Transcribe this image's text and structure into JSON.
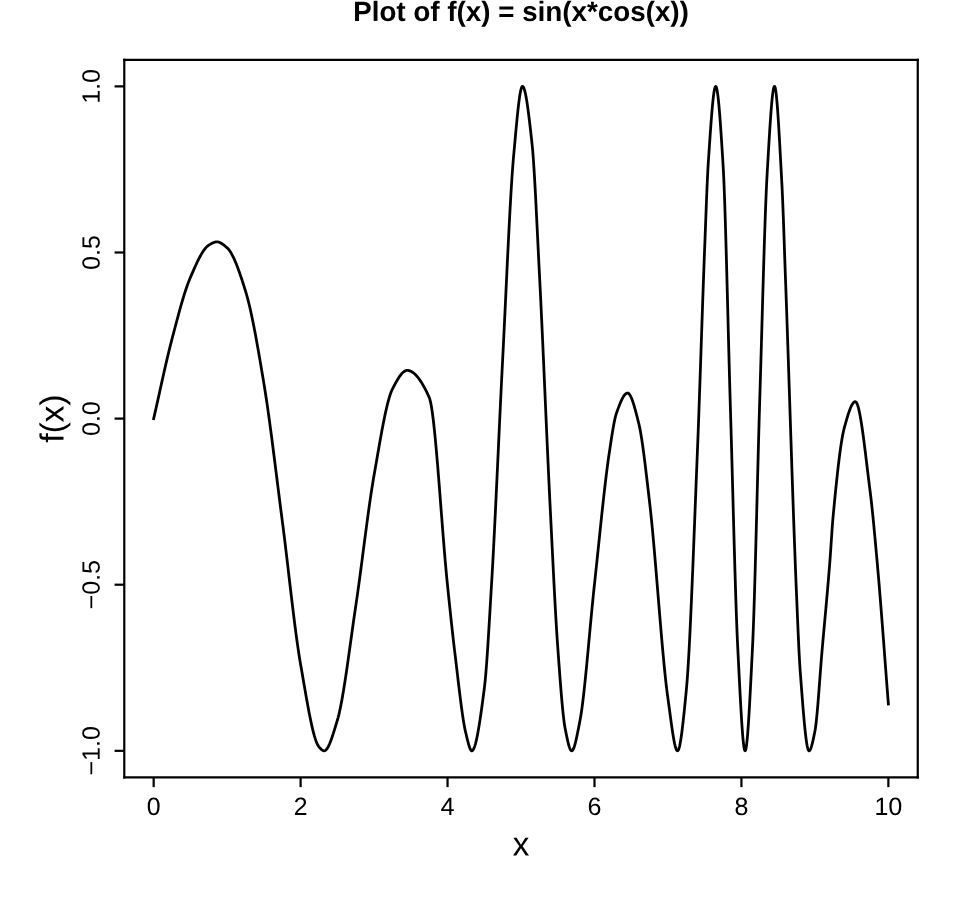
{
  "chart_data": {
    "type": "line",
    "title": "Plot of f(x) = sin(x*cos(x))",
    "xlabel": "x",
    "ylabel": "f(x)",
    "series": [
      {
        "color": "#000000",
        "x": [
          0,
          0.25,
          0.5,
          0.75,
          0.86,
          1.0,
          1.25,
          1.5,
          1.75,
          2.0,
          2.25,
          2.32,
          2.5,
          2.75,
          3.0,
          3.25,
          3.45,
          3.75,
          4.0,
          4.1,
          4.25,
          4.33,
          4.5,
          4.6,
          4.75,
          4.9,
          5.02,
          5.15,
          5.25,
          5.4,
          5.5,
          5.6,
          5.69,
          5.8,
          6.0,
          6.2,
          6.3,
          6.45,
          6.6,
          6.75,
          7.0,
          7.13,
          7.25,
          7.4,
          7.5,
          7.55,
          7.65,
          7.75,
          7.85,
          7.95,
          8.05,
          8.15,
          8.25,
          8.35,
          8.45,
          8.55,
          8.6,
          8.75,
          8.8,
          8.92,
          9.0,
          9.1,
          9.2,
          9.25,
          9.4,
          9.55,
          9.75,
          9.85,
          10
        ],
        "values": [
          0,
          0.24,
          0.425,
          0.522,
          0.532,
          0.514,
          0.384,
          0.106,
          -0.307,
          -0.74,
          -0.988,
          -1.0,
          -0.908,
          -0.565,
          -0.17,
          0.089,
          0.145,
          0.064,
          -0.503,
          -0.706,
          -0.948,
          -1.0,
          -0.813,
          -0.494,
          0.178,
          0.792,
          1.0,
          0.827,
          0.438,
          -0.281,
          -0.688,
          -0.932,
          -1.0,
          -0.912,
          -0.498,
          -0.105,
          0.017,
          0.077,
          -0.012,
          -0.252,
          -0.843,
          -1.0,
          -0.817,
          -0.103,
          0.516,
          0.774,
          1.0,
          0.764,
          0.031,
          -0.69,
          -1.0,
          -0.692,
          0.062,
          0.737,
          1.0,
          0.709,
          0.419,
          -0.53,
          -0.76,
          -1.0,
          -0.941,
          -0.692,
          -0.441,
          -0.289,
          -0.028,
          0.051,
          -0.216,
          -0.438,
          -0.859
        ]
      }
    ],
    "xlim": [
      -0.4,
      10.4
    ],
    "ylim": [
      -1.08,
      1.08
    ],
    "xticks": [
      0,
      2,
      4,
      6,
      8,
      10
    ],
    "yticks": [
      {
        "value": -1,
        "label": "−1.0"
      },
      {
        "value": -0.5,
        "label": "−0.5"
      },
      {
        "value": 0,
        "label": "0.0"
      },
      {
        "value": 0.5,
        "label": "0.5"
      },
      {
        "value": 1,
        "label": "1.0"
      }
    ],
    "grid": false,
    "legend": false,
    "marker": "none",
    "line_style": "solid"
  }
}
